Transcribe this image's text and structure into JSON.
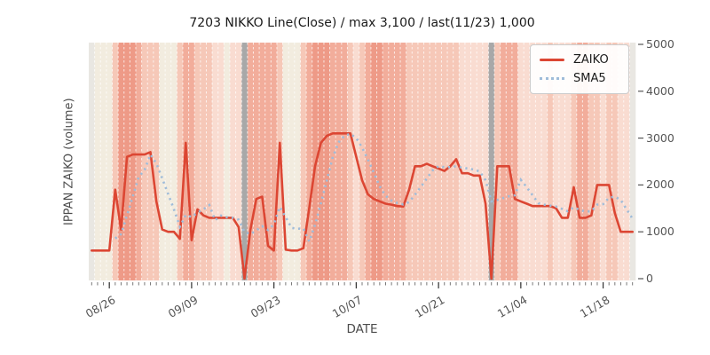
{
  "title": "7203 NIKKO Line(Close) / max 3,100 / last(11/23) 1,000",
  "axes": {
    "x_label": "DATE",
    "y_label": "IPPAN ZAIKO (volume)"
  },
  "legend": {
    "items": [
      {
        "label": "ZAIKO",
        "style": "solid",
        "color": "#dc4633"
      },
      {
        "label": "SMA5",
        "style": "dotted",
        "color": "#9fbcd9"
      }
    ]
  },
  "chart_data": {
    "type": "line",
    "title": "7203 NIKKO Line(Close) / max 3,100 / last(11/23) 1,000",
    "xlabel": "DATE",
    "ylabel": "IPPAN ZAIKO (volume)",
    "ylim": [
      0,
      5000
    ],
    "y_ticks": [
      0,
      1000,
      2000,
      3000,
      4000,
      5000
    ],
    "x_tick_labels": [
      "08/26",
      "09/09",
      "09/23",
      "10/07",
      "10/21",
      "11/04",
      "11/18"
    ],
    "x_tick_indices": [
      3,
      17,
      31,
      45,
      59,
      73,
      87
    ],
    "n_points": 93,
    "grid": "vertical-white-dashed-daily",
    "legend_position": "upper right",
    "max_value": 3100,
    "last_value": 1000,
    "last_label": "11/23",
    "series": [
      {
        "name": "ZAIKO",
        "color": "#dc4633",
        "style": "solid",
        "values": [
          600,
          600,
          600,
          600,
          1900,
          1050,
          2600,
          2650,
          2650,
          2650,
          2700,
          1650,
          1050,
          1000,
          1000,
          850,
          2900,
          820,
          1480,
          1350,
          1300,
          1300,
          1300,
          1300,
          1300,
          1100,
          0,
          1050,
          1700,
          1750,
          700,
          600,
          2900,
          620,
          600,
          600,
          650,
          1500,
          2400,
          2900,
          3050,
          3100,
          3100,
          3100,
          3100,
          2600,
          2100,
          1800,
          1700,
          1650,
          1600,
          1580,
          1550,
          1540,
          1900,
          2400,
          2400,
          2450,
          2400,
          2350,
          2300,
          2400,
          2550,
          2250,
          2250,
          2200,
          2200,
          1600,
          0,
          2400,
          2400,
          2400,
          1700,
          1650,
          1600,
          1550,
          1550,
          1550,
          1550,
          1500,
          1300,
          1300,
          1950,
          1300,
          1300,
          1350,
          2000,
          2000,
          2000,
          1400,
          1000,
          1000,
          1000
        ]
      },
      {
        "name": "SMA5",
        "color": "#9fbcd9",
        "style": "dotted",
        "derived": "5-day simple moving average of ZAIKO",
        "window": 5
      }
    ],
    "background_bands": {
      "levels": "e0002444322200023322211011g33333200023444333212344333322222222211111g23331111121112332212211e",
      "colors": {
        "e": "#e9e7e2",
        "0": "#f2ecdf",
        "1": "#f9dcd1",
        "2": "#f6c8b8",
        "3": "#f2ad9b",
        "4": "#ee9a87",
        "g": "#a8a8a8"
      }
    }
  }
}
